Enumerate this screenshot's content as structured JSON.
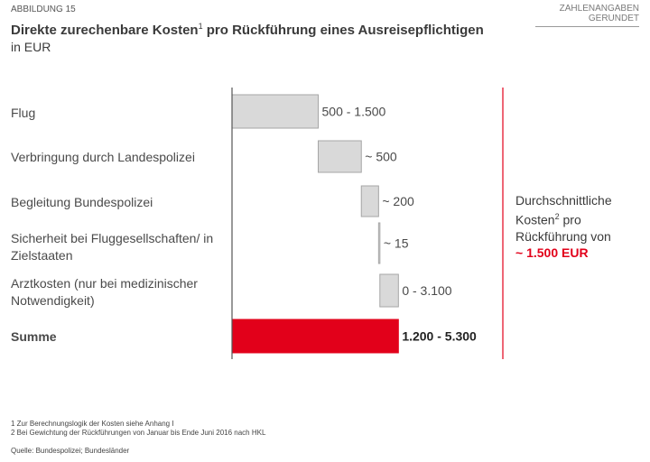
{
  "figure_label": "ABBILDUNG 15",
  "note": "ZAHLENANGABEN GERUNDET",
  "chart_data": {
    "type": "bar",
    "title": "Direkte zurechenbare Kosten",
    "title_sup": "1",
    "title_rest": " pro Rückführung eines Ausreisepflichtigen",
    "subtitle": "in EUR",
    "categories": [
      "Flug",
      "Verbringung durch Landespolizei",
      "Begleitung Bundespolizei",
      "Sicherheit bei Fluggesellschaften/ in Zielstaaten",
      "Arztkosten (nur bei medizinischer Notwendigkeit)",
      "Summe"
    ],
    "value_labels": [
      "500 - 1.500",
      "~ 500",
      "~ 200",
      "~ 15",
      "0 - 3.100",
      "1.200 - 5.300"
    ],
    "start": [
      0,
      1000,
      1500,
      1700,
      1715,
      0
    ],
    "values": [
      1000,
      500,
      200,
      15,
      215,
      1930
    ],
    "total_index": 5,
    "colors": {
      "bar": "#d9d9d9",
      "bar_border": "#a6a6a6",
      "total": "#e2001a",
      "divider": "#e2001a"
    },
    "grid": false,
    "legend": "none"
  },
  "side_box": {
    "line1": "Durchschnittliche",
    "line2": "Kosten",
    "line2_sup": "2",
    "line2_rest": " pro",
    "line3": "Rückführung von",
    "value": "~ 1.500 EUR"
  },
  "footnotes": [
    "1 Zur Berechnungslogik der Kosten siehe Anhang I",
    "2 Bei Gewichtung der Rückführungen von Januar bis Ende Juni 2016 nach HKL"
  ],
  "source": "Quelle: Bundespolizei; Bundesländer"
}
